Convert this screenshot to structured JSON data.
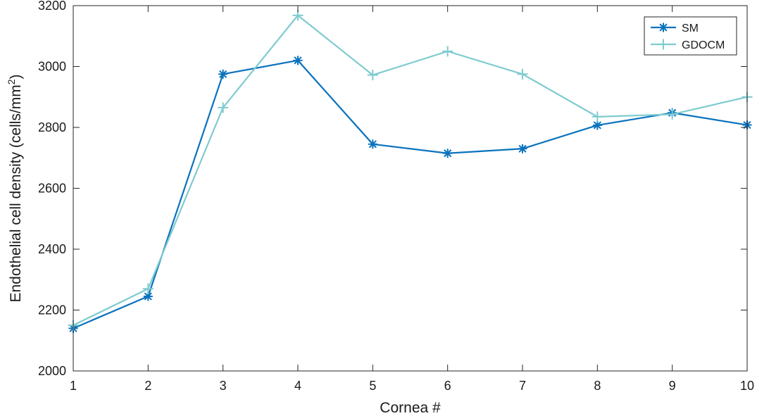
{
  "chart_data": {
    "type": "line",
    "title": "",
    "xlabel": "Cornea #",
    "ylabel": "Endothelial  cell density (cells/mm",
    "ylabel_superscript": "2",
    "ylabel_close": ")",
    "x": [
      1,
      2,
      3,
      4,
      5,
      6,
      7,
      8,
      9,
      10
    ],
    "xlim": [
      1,
      10
    ],
    "ylim": [
      2000,
      3200
    ],
    "x_ticks": [
      "1",
      "2",
      "3",
      "4",
      "5",
      "6",
      "7",
      "8",
      "9",
      "10"
    ],
    "y_ticks": [
      "2000",
      "2200",
      "2400",
      "2600",
      "2800",
      "3000",
      "3200"
    ],
    "grid": false,
    "legend_position": "top-right",
    "series": [
      {
        "name": "SM",
        "color": "#0a72bd",
        "marker": "asterisk",
        "values": [
          2140,
          2245,
          2975,
          3020,
          2745,
          2715,
          2730,
          2807,
          2848,
          2808
        ]
      },
      {
        "name": "GDOCM",
        "color": "#7ecbd0",
        "marker": "plus",
        "values": [
          2150,
          2270,
          2865,
          3168,
          2972,
          3050,
          2975,
          2835,
          2843,
          2900
        ]
      }
    ]
  }
}
